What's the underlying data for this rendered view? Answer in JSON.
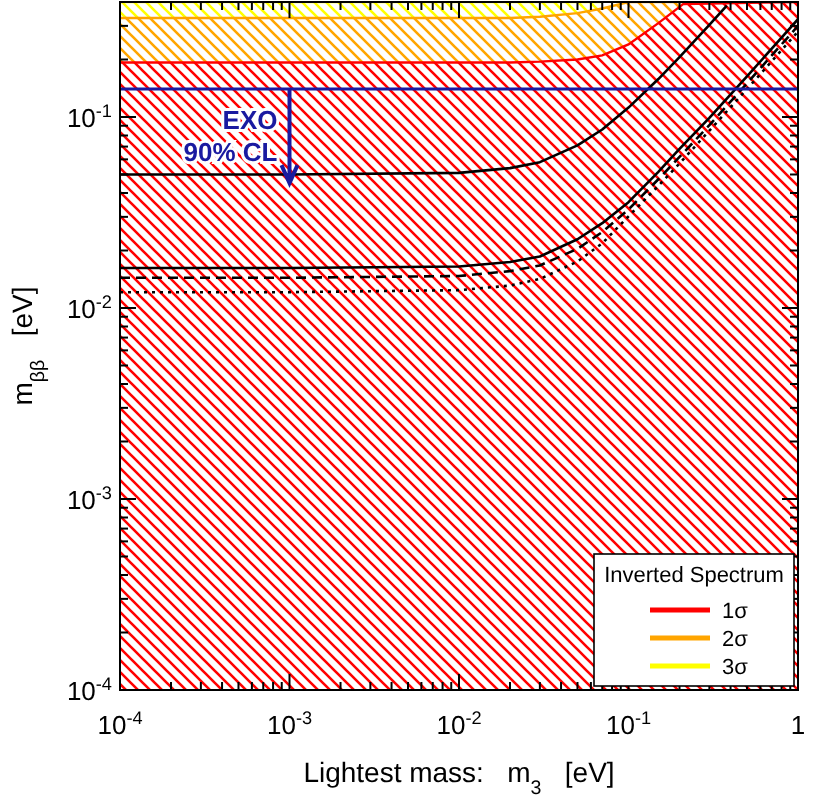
{
  "chart_data": {
    "type": "area",
    "stacked": true,
    "xlabel": "Lightest mass:   m$_{3}$   [eV]",
    "ylabel": "m$_{ββ}$   [eV]",
    "log": "xy",
    "legend": "bottom right",
    "legend_title": "Inverted Spectrum",
    "grid": false,
    "xlim": [
      0.0001,
      1
    ],
    "ylim": [
      0.0001,
      0.4
    ],
    "x": [
      0.0001,
      0.001,
      0.01,
      0.02,
      0.03,
      0.05,
      0.07,
      0.1,
      0.15,
      0.21,
      1
    ],
    "xticks": [
      {
        "value": 0.0001,
        "label": "10$^{-4}$"
      },
      {
        "value": 0.0002,
        "label": null
      },
      {
        "value": 0.0003,
        "label": null
      },
      {
        "value": 0.0004,
        "label": null
      },
      {
        "value": 0.0005,
        "label": null
      },
      {
        "value": 0.0006,
        "label": null
      },
      {
        "value": 0.0007,
        "label": null
      },
      {
        "value": 0.0008,
        "label": null
      },
      {
        "value": 0.0009,
        "label": null
      },
      {
        "value": 0.001,
        "label": "10$^{-3}$"
      },
      {
        "value": 0.002,
        "label": null
      },
      {
        "value": 0.003,
        "label": null
      },
      {
        "value": 0.004,
        "label": null
      },
      {
        "value": 0.005,
        "label": null
      },
      {
        "value": 0.006,
        "label": null
      },
      {
        "value": 0.007,
        "label": null
      },
      {
        "value": 0.008,
        "label": null
      },
      {
        "value": 0.009,
        "label": null
      },
      {
        "value": 0.01,
        "label": "10$^{-2}$"
      },
      {
        "value": 0.02,
        "label": null
      },
      {
        "value": 0.03,
        "label": null
      },
      {
        "value": 0.04,
        "label": null
      },
      {
        "value": 0.05,
        "label": null
      },
      {
        "value": 0.06,
        "label": null
      },
      {
        "value": 0.07,
        "label": null
      },
      {
        "value": 0.08,
        "label": null
      },
      {
        "value": 0.09,
        "label": null
      },
      {
        "value": 0.1,
        "label": "10$^{-1}$"
      },
      {
        "value": 0.2,
        "label": null
      },
      {
        "value": 0.3,
        "label": null
      },
      {
        "value": 0.4,
        "label": null
      },
      {
        "value": 0.5,
        "label": null
      },
      {
        "value": 0.6,
        "label": null
      },
      {
        "value": 0.7,
        "label": null
      },
      {
        "value": 0.8,
        "label": null
      },
      {
        "value": 0.9,
        "label": null
      },
      1
    ],
    "yticks": [
      {
        "value": 0.0001,
        "label": "10$^{-4}$"
      },
      {
        "value": 0.0002,
        "label": null
      },
      {
        "value": 0.0003,
        "label": null
      },
      {
        "value": 0.0004,
        "label": null
      },
      {
        "value": 0.0005,
        "label": null
      },
      {
        "value": 0.0006,
        "label": null
      },
      {
        "value": 0.0007,
        "label": null
      },
      {
        "value": 0.0008,
        "label": null
      },
      {
        "value": 0.0009,
        "label": null
      },
      {
        "value": 0.001,
        "label": "10$^{-3}$"
      },
      {
        "value": 0.002,
        "label": null
      },
      {
        "value": 0.003,
        "label": null
      },
      {
        "value": 0.004,
        "label": null
      },
      {
        "value": 0.005,
        "label": null
      },
      {
        "value": 0.006,
        "label": null
      },
      {
        "value": 0.007,
        "label": null
      },
      {
        "value": 0.008,
        "label": null
      },
      {
        "value": 0.009,
        "label": null
      },
      {
        "value": 0.01,
        "label": "10$^{-2}$"
      },
      {
        "value": 0.02,
        "label": null
      },
      {
        "value": 0.03,
        "label": null
      },
      {
        "value": 0.04,
        "label": null
      },
      {
        "value": 0.05,
        "label": null
      },
      {
        "value": 0.06,
        "label": null
      },
      {
        "value": 0.07,
        "label": null
      },
      {
        "value": 0.08,
        "label": null
      },
      {
        "value": 0.09,
        "label": null
      },
      {
        "value": 0.1,
        "label": "10$^{-1}$"
      },
      {
        "value": 0.2,
        "label": null
      },
      {
        "value": 0.3,
        "label": null
      },
      {
        "value": 0.4,
        "label": null
      }
    ],
    "series": [
      {
        "name": "1σ",
        "color": "#ff0000",
        "values": [
          0.193,
          0.193,
          0.193,
          0.193,
          0.195,
          0.2,
          0.21,
          0.24,
          0.31,
          0.39,
          0.4
        ]
      },
      {
        "name": "2σ",
        "color": "#ffa500",
        "values": [
          0.137,
          0.137,
          0.137,
          0.137,
          0.14,
          0.15,
          0.16,
          0.16,
          0.09,
          0.01,
          null
        ]
      },
      {
        "name": "3σ",
        "color": "#ffff00",
        "values": [
          0.07,
          0.07,
          0.07,
          0.07,
          0.065,
          0.05,
          0.03,
          null,
          null,
          null,
          null
        ]
      },
      {
        "type": "line",
        "color": "#000000",
        "line_style": "solid",
        "x": [
          0.0001,
          0.001,
          0.01,
          0.02,
          0.03,
          0.05,
          0.07,
          0.1,
          0.15,
          0.2,
          0.3,
          0.38
        ],
        "values": [
          0.05,
          0.05,
          0.051,
          0.054,
          0.058,
          0.071,
          0.086,
          0.112,
          0.158,
          0.206,
          0.304,
          0.383
        ]
      },
      {
        "type": "line",
        "color": "#000000",
        "line_style": "solid",
        "x": [
          0.0001,
          0.001,
          0.01,
          0.02,
          0.03,
          0.05,
          0.07,
          0.1,
          0.15,
          0.2,
          0.3,
          0.5,
          0.7,
          1
        ],
        "values": [
          0.0162,
          0.0162,
          0.0165,
          0.0174,
          0.0186,
          0.0229,
          0.0278,
          0.0358,
          0.0516,
          0.068,
          0.099,
          0.163,
          0.228,
          0.325
        ]
      },
      {
        "type": "line",
        "color": "#000000",
        "line_style": "dashed",
        "x": [
          0.0001,
          0.001,
          0.01,
          0.02,
          0.03,
          0.05,
          0.07,
          0.1,
          0.15,
          0.2,
          0.3,
          0.5,
          0.7,
          1
        ],
        "values": [
          0.0144,
          0.0144,
          0.0147,
          0.0156,
          0.0167,
          0.0204,
          0.025,
          0.0328,
          0.0472,
          0.0618,
          0.0906,
          0.15,
          0.21,
          0.3
        ]
      },
      {
        "type": "line",
        "color": "#000000",
        "line_style": "dotted",
        "x": [
          0.0001,
          0.001,
          0.01,
          0.02,
          0.03,
          0.05,
          0.07,
          0.1,
          0.15,
          0.2,
          0.3,
          0.5,
          0.7,
          1
        ],
        "values": [
          0.0121,
          0.0121,
          0.0124,
          0.0131,
          0.0142,
          0.0175,
          0.0218,
          0.0302,
          0.0436,
          0.0571,
          0.0848,
          0.14,
          0.196,
          0.28
        ]
      }
    ],
    "ref_lines": [
      {
        "axis": "y",
        "value": 0.14,
        "label": "EXO\n90% CL",
        "color": "#1a1aa0"
      }
    ]
  }
}
